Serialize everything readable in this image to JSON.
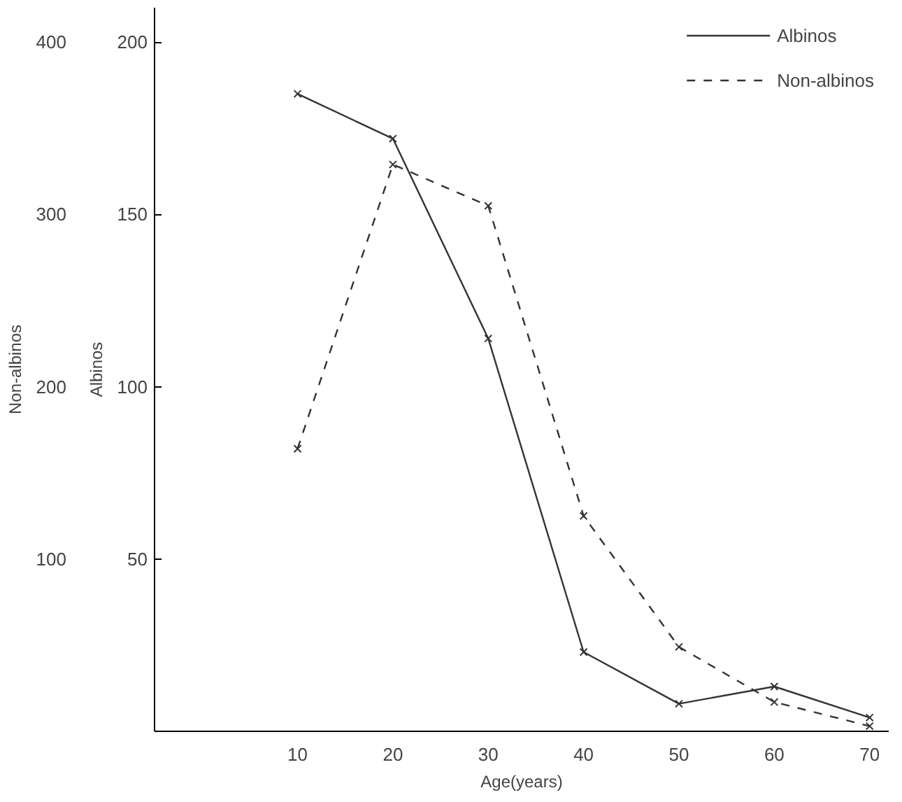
{
  "chart_data": {
    "type": "line",
    "xlabel": "Age(years)",
    "ylabel": "Albinos",
    "y2label": "Non-albinos",
    "x": [
      10,
      20,
      30,
      40,
      50,
      60,
      70
    ],
    "series": [
      {
        "name": "Albinos",
        "color": "#333333",
        "values": [
          185,
          172,
          114,
          23,
          8,
          13,
          4
        ],
        "line_style": "solid"
      },
      {
        "name": "Non-albinos",
        "color": "#333333",
        "values": [
          164,
          329,
          305,
          125,
          49,
          17,
          3
        ],
        "line_style": "dashed",
        "axis": "y2"
      }
    ],
    "xlim": [
      -5,
      72
    ],
    "xticks": [
      10,
      20,
      30,
      40,
      50,
      60,
      70
    ],
    "ylim": [
      0,
      210
    ],
    "yticks": [
      50,
      100,
      150,
      200
    ],
    "y2lim": [
      0,
      420
    ],
    "y2ticks": [
      100,
      200,
      300,
      400
    ],
    "marker": "cross",
    "grid": false,
    "legend": "top right"
  }
}
